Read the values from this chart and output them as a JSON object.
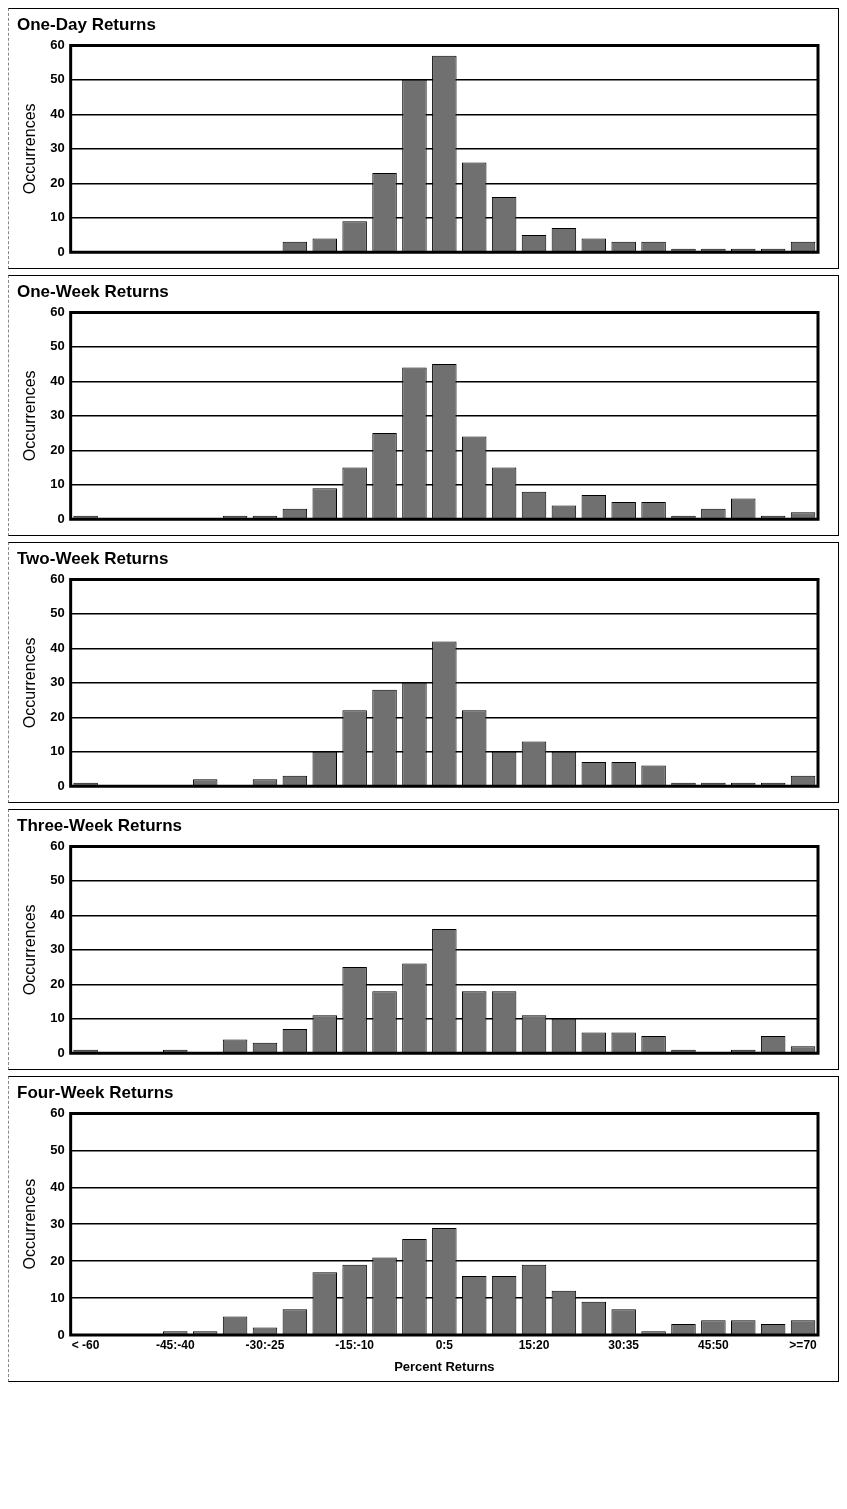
{
  "chart_data": [
    {
      "type": "bar",
      "title": "One-Day Returns",
      "ylabel": "Occurrences",
      "categories": [
        null,
        null,
        null,
        null,
        null,
        null,
        null,
        null,
        null,
        null,
        null,
        null,
        null,
        null,
        null,
        null,
        null,
        null,
        null,
        null,
        null,
        null,
        null,
        null,
        null
      ],
      "values": [
        0,
        0,
        0,
        0,
        0,
        0,
        0,
        3,
        4,
        9,
        23,
        50,
        57,
        26,
        16,
        5,
        7,
        4,
        3,
        3,
        1,
        1,
        1,
        1,
        3
      ],
      "color": "#707070",
      "ylim": [
        0,
        60
      ],
      "yticks": [
        0,
        10,
        20,
        30,
        40,
        50,
        60
      ],
      "grid": "y",
      "tick_labels": "y"
    },
    {
      "type": "bar",
      "title": "One-Week Returns",
      "ylabel": "Occurrences",
      "categories": [
        null,
        null,
        null,
        null,
        null,
        null,
        null,
        null,
        null,
        null,
        null,
        null,
        null,
        null,
        null,
        null,
        null,
        null,
        null,
        null,
        null,
        null,
        null,
        null,
        null
      ],
      "values": [
        1,
        0,
        0,
        0,
        0,
        1,
        1,
        3,
        9,
        15,
        25,
        44,
        45,
        24,
        15,
        8,
        4,
        7,
        5,
        5,
        1,
        3,
        6,
        1,
        2
      ],
      "color": "#707070",
      "ylim": [
        0,
        60
      ],
      "yticks": [
        0,
        10,
        20,
        30,
        40,
        50,
        60
      ],
      "grid": "y",
      "tick_labels": "y"
    },
    {
      "type": "bar",
      "title": "Two-Week Returns",
      "ylabel": "Occurrences",
      "categories": [
        null,
        null,
        null,
        null,
        null,
        null,
        null,
        null,
        null,
        null,
        null,
        null,
        null,
        null,
        null,
        null,
        null,
        null,
        null,
        null,
        null,
        null,
        null,
        null,
        null
      ],
      "values": [
        1,
        0,
        0,
        0,
        2,
        0,
        2,
        3,
        10,
        22,
        28,
        30,
        42,
        22,
        10,
        13,
        10,
        7,
        7,
        6,
        1,
        1,
        1,
        1,
        3
      ],
      "color": "#707070",
      "ylim": [
        0,
        60
      ],
      "yticks": [
        0,
        10,
        20,
        30,
        40,
        50,
        60
      ],
      "grid": "y",
      "tick_labels": "y"
    },
    {
      "type": "bar",
      "title": "Three-Week Returns",
      "ylabel": "Occurrences",
      "categories": [
        null,
        null,
        null,
        null,
        null,
        null,
        null,
        null,
        null,
        null,
        null,
        null,
        null,
        null,
        null,
        null,
        null,
        null,
        null,
        null,
        null,
        null,
        null,
        null,
        null
      ],
      "values": [
        1,
        0,
        0,
        1,
        0,
        4,
        3,
        7,
        11,
        25,
        18,
        26,
        36,
        18,
        18,
        11,
        10,
        6,
        6,
        5,
        1,
        0,
        1,
        5,
        2
      ],
      "color": "#707070",
      "ylim": [
        0,
        60
      ],
      "yticks": [
        0,
        10,
        20,
        30,
        40,
        50,
        60
      ],
      "grid": "y",
      "tick_labels": "y"
    },
    {
      "type": "bar",
      "title": "Four-Week Returns",
      "xlabel": "Percent Returns",
      "ylabel": "Occurrences",
      "categories": [
        "< -60",
        null,
        null,
        "-45:-40",
        null,
        null,
        "-30:-25",
        null,
        null,
        "-15:-10",
        null,
        null,
        "0:5",
        null,
        null,
        "15:20",
        null,
        null,
        "30:35",
        null,
        null,
        "45:50",
        null,
        null,
        ">=70"
      ],
      "values": [
        0,
        0,
        0,
        1,
        1,
        5,
        2,
        7,
        17,
        19,
        21,
        26,
        29,
        16,
        16,
        19,
        12,
        9,
        7,
        1,
        3,
        4,
        4,
        3,
        4
      ],
      "color": "#707070",
      "ylim": [
        0,
        60
      ],
      "yticks": [
        0,
        10,
        20,
        30,
        40,
        50,
        60
      ],
      "grid": "y"
    }
  ]
}
